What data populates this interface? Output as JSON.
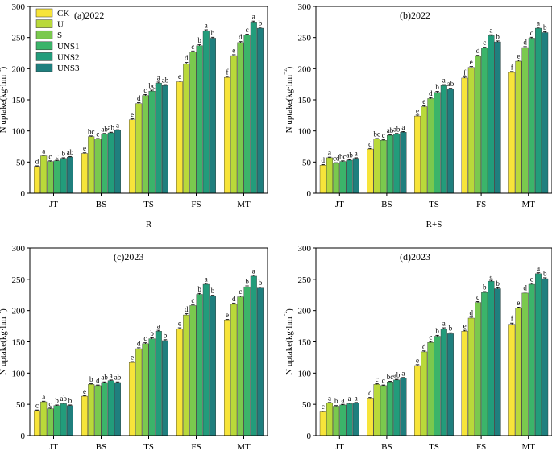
{
  "series_names": [
    "CK",
    "U",
    "S",
    "UNS1",
    "UNS2",
    "UNS3"
  ],
  "colors": [
    "#f7e43a",
    "#b9d93a",
    "#7ac94e",
    "#3bb46a",
    "#229c7b",
    "#1f7f7e"
  ],
  "chart_data": [
    {
      "type": "bar",
      "title": "(a)2022",
      "xlabel": "R",
      "ylabel": "N uptake(kg·hm⁻²)",
      "ylim": [
        0,
        300
      ],
      "yticks": [
        0,
        50,
        100,
        150,
        200,
        250,
        300
      ],
      "categories": [
        "JT",
        "BS",
        "TS",
        "FS",
        "MT"
      ],
      "series": [
        {
          "name": "CK",
          "values": [
            43,
            64,
            118,
            179,
            186
          ],
          "errors": [
            1,
            1,
            1.5,
            1.5,
            1.5
          ],
          "letters": [
            "d",
            "e",
            "e",
            "e",
            "f"
          ]
        },
        {
          "name": "U",
          "values": [
            60,
            91,
            144,
            208,
            221
          ],
          "errors": [
            1,
            1,
            1.5,
            2,
            1.5
          ],
          "letters": [
            "a",
            "bc",
            "d",
            "d",
            "e"
          ]
        },
        {
          "name": "S",
          "values": [
            51,
            87,
            157,
            227,
            242
          ],
          "errors": [
            1,
            1,
            1.5,
            1.5,
            1.5
          ],
          "letters": [
            "c",
            "c",
            "c",
            "c",
            "d"
          ]
        },
        {
          "name": "UNS1",
          "values": [
            52,
            95,
            164,
            237,
            254
          ],
          "errors": [
            1,
            1,
            1.5,
            1.5,
            1.5
          ],
          "letters": [
            "c",
            "ab",
            "bc",
            "b",
            "c"
          ]
        },
        {
          "name": "UNS2",
          "values": [
            56,
            97,
            177,
            261,
            275
          ],
          "errors": [
            1,
            1,
            1.5,
            1.5,
            1.5
          ],
          "letters": [
            "b",
            "ab",
            "a",
            "a",
            "a"
          ]
        },
        {
          "name": "UNS3",
          "values": [
            58,
            101,
            173,
            249,
            265
          ],
          "errors": [
            1,
            1,
            1.5,
            1.5,
            1.5
          ],
          "letters": [
            "ab",
            "a",
            "ab",
            "b",
            "b"
          ]
        }
      ]
    },
    {
      "type": "bar",
      "title": "(b)2022",
      "xlabel": "R+S",
      "ylabel": "N uptake(kg·hm⁻²)",
      "ylim": [
        0,
        300
      ],
      "yticks": [
        0,
        50,
        100,
        150,
        200,
        250,
        300
      ],
      "categories": [
        "JT",
        "BS",
        "TS",
        "FS",
        "MT"
      ],
      "series": [
        {
          "name": "CK",
          "values": [
            45,
            71,
            124,
            185,
            194
          ],
          "errors": [
            1,
            1,
            1.5,
            1.5,
            1.5
          ],
          "letters": [
            "d",
            "d",
            "e",
            "f",
            "f"
          ]
        },
        {
          "name": "U",
          "values": [
            57,
            87,
            139,
            202,
            212
          ],
          "errors": [
            1,
            1,
            1.5,
            1.5,
            1.5
          ],
          "letters": [
            "a",
            "bc",
            "e",
            "e",
            "e"
          ]
        },
        {
          "name": "S",
          "values": [
            48,
            85,
            152,
            220,
            234
          ],
          "errors": [
            1,
            1,
            1.5,
            1.5,
            1.5
          ],
          "letters": [
            "cd",
            "c",
            "d",
            "d",
            "d"
          ]
        },
        {
          "name": "UNS1",
          "values": [
            51,
            93,
            162,
            233,
            249
          ],
          "errors": [
            1,
            1,
            1.5,
            1.5,
            1.5
          ],
          "letters": [
            "bc",
            "ab",
            "b",
            "c",
            "c"
          ]
        },
        {
          "name": "UNS2",
          "values": [
            53,
            95,
            173,
            253,
            265
          ],
          "errors": [
            1,
            1,
            1.5,
            1.5,
            1.5
          ],
          "letters": [
            "ab",
            "ab",
            "a",
            "a",
            "a"
          ]
        },
        {
          "name": "UNS3",
          "values": [
            56,
            98,
            167,
            243,
            258
          ],
          "errors": [
            1,
            1,
            1.5,
            1.5,
            1.5
          ],
          "letters": [
            "a",
            "a",
            "ab",
            "b",
            "b"
          ]
        }
      ]
    },
    {
      "type": "bar",
      "title": "(c)2023",
      "xlabel": "R",
      "ylabel": "N uptake(kg·hm⁻²)",
      "ylim": [
        0,
        300
      ],
      "yticks": [
        0,
        50,
        100,
        150,
        200,
        250,
        300
      ],
      "categories": [
        "JT",
        "BS",
        "TS",
        "FS",
        "MT"
      ],
      "series": [
        {
          "name": "CK",
          "values": [
            40,
            63,
            117,
            171,
            184
          ],
          "errors": [
            1,
            1,
            1.5,
            1.5,
            2
          ],
          "letters": [
            "c",
            "e",
            "e",
            "e",
            "e"
          ]
        },
        {
          "name": "U",
          "values": [
            54,
            82,
            139,
            193,
            210
          ],
          "errors": [
            1,
            1,
            1.5,
            2,
            2
          ],
          "letters": [
            "a",
            "b",
            "d",
            "d",
            "d"
          ]
        },
        {
          "name": "S",
          "values": [
            43,
            80,
            147,
            208,
            222
          ],
          "errors": [
            1,
            1,
            1.5,
            1.5,
            1.5
          ],
          "letters": [
            "c",
            "d",
            "c",
            "c",
            "c"
          ]
        },
        {
          "name": "UNS1",
          "values": [
            48,
            85,
            155,
            226,
            238
          ],
          "errors": [
            1,
            1,
            1.5,
            1.5,
            1.5
          ],
          "letters": [
            "b",
            "ab",
            "b",
            "b",
            "b"
          ]
        },
        {
          "name": "UNS2",
          "values": [
            51,
            88,
            167,
            242,
            255
          ],
          "errors": [
            1,
            1,
            1.5,
            1.5,
            1.5
          ],
          "letters": [
            "ab",
            "a",
            "a",
            "a",
            "a"
          ]
        },
        {
          "name": "UNS3",
          "values": [
            48,
            85,
            152,
            223,
            236
          ],
          "errors": [
            1,
            1,
            1.5,
            1.5,
            1.5
          ],
          "letters": [
            "b",
            "ab",
            "b",
            "b",
            "b"
          ]
        }
      ]
    },
    {
      "type": "bar",
      "title": "(d)2023",
      "xlabel": "R+S",
      "ylabel": "N uptake(kg·hm⁻²)",
      "ylim": [
        0,
        300
      ],
      "yticks": [
        0,
        50,
        100,
        150,
        200,
        250,
        300
      ],
      "categories": [
        "JT",
        "BS",
        "TS",
        "FS",
        "MT"
      ],
      "series": [
        {
          "name": "CK",
          "values": [
            38,
            60,
            112,
            167,
            178
          ],
          "errors": [
            1,
            1,
            1.5,
            1.5,
            2
          ],
          "letters": [
            "c",
            "d",
            "e",
            "e",
            "f"
          ]
        },
        {
          "name": "U",
          "values": [
            52,
            82,
            134,
            188,
            204
          ],
          "errors": [
            1,
            1,
            1.5,
            1.5,
            1.5
          ],
          "letters": [
            "a",
            "c",
            "d",
            "d",
            "e"
          ]
        },
        {
          "name": "S",
          "values": [
            47,
            80,
            149,
            213,
            228
          ],
          "errors": [
            1,
            1,
            1.5,
            1.5,
            1.5
          ],
          "letters": [
            "b",
            "c",
            "c",
            "c",
            "d"
          ]
        },
        {
          "name": "UNS1",
          "values": [
            49,
            86,
            159,
            229,
            242
          ],
          "errors": [
            1,
            1,
            1.5,
            1.5,
            1.5
          ],
          "letters": [
            "a",
            "bc",
            "b",
            "b",
            "c"
          ]
        },
        {
          "name": "UNS2",
          "values": [
            51,
            89,
            171,
            247,
            259
          ],
          "errors": [
            1,
            1,
            1.5,
            1.5,
            1.5
          ],
          "letters": [
            "a",
            "ab",
            "a",
            "a",
            "a"
          ]
        },
        {
          "name": "UNS3",
          "values": [
            52,
            92,
            163,
            235,
            251
          ],
          "errors": [
            1,
            1,
            1.5,
            1.5,
            1.5
          ],
          "letters": [
            "a",
            "a",
            "b",
            "b",
            "b"
          ]
        }
      ]
    }
  ]
}
